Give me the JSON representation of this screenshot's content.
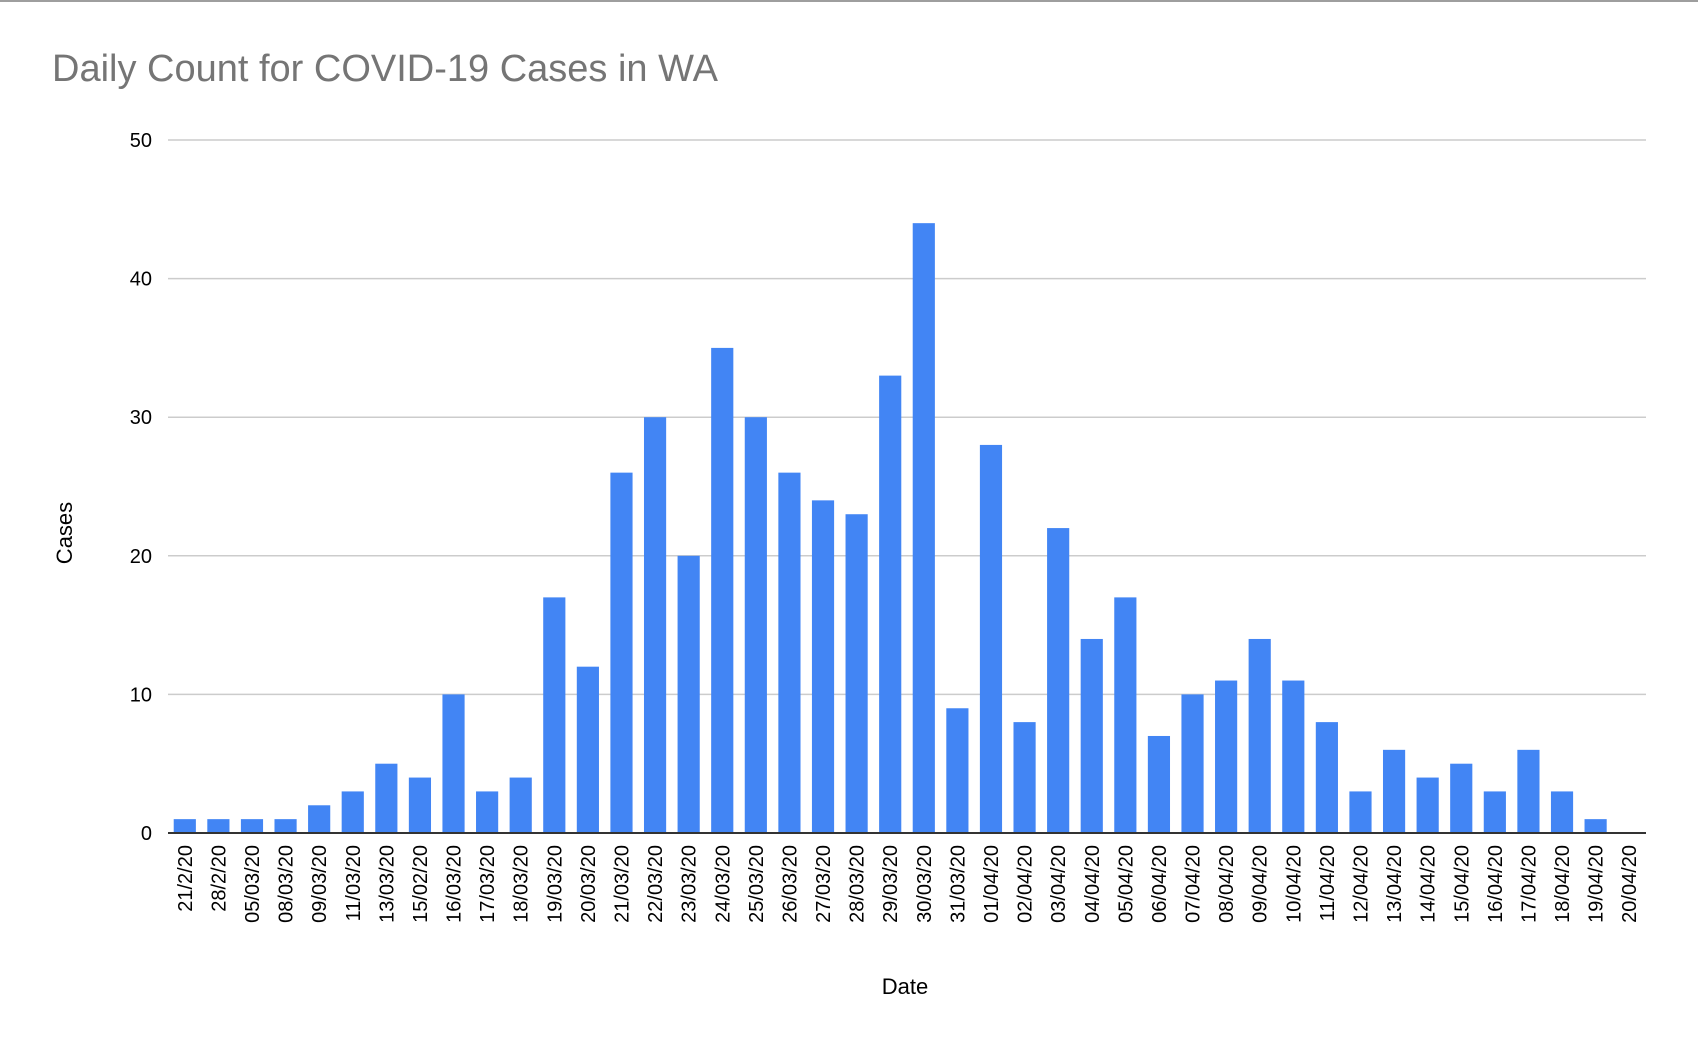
{
  "chart_data": {
    "type": "bar",
    "title": "Daily Count for COVID-19 Cases in WA",
    "xlabel": "Date",
    "ylabel": "Cases",
    "ylim": [
      0,
      50
    ],
    "yticks": [
      0,
      10,
      20,
      30,
      40,
      50
    ],
    "grid": true,
    "legend": "none",
    "bar_color": "#4285f4",
    "categories": [
      "21/2/20",
      "28/2/20",
      "05/03/20",
      "08/03/20",
      "09/03/20",
      "11/03/20",
      "13/03/20",
      "15/02/20",
      "16/03/20",
      "17/03/20",
      "18/03/20",
      "19/03/20",
      "20/03/20",
      "21/03/20",
      "22/03/20",
      "23/03/20",
      "24/03/20",
      "25/03/20",
      "26/03/20",
      "27/03/20",
      "28/03/20",
      "29/03/20",
      "30/03/20",
      "31/03/20",
      "01/04/20",
      "02/04/20",
      "03/04/20",
      "04/04/20",
      "05/04/20",
      "06/04/20",
      "07/04/20",
      "08/04/20",
      "09/04/20",
      "10/04/20",
      "11/04/20",
      "12/04/20",
      "13/04/20",
      "14/04/20",
      "15/04/20",
      "16/04/20",
      "17/04/20",
      "18/04/20",
      "19/04/20",
      "20/04/20"
    ],
    "values": [
      1,
      1,
      1,
      1,
      2,
      3,
      5,
      4,
      10,
      3,
      4,
      17,
      12,
      26,
      30,
      20,
      35,
      30,
      26,
      24,
      23,
      33,
      44,
      9,
      28,
      8,
      22,
      14,
      17,
      7,
      10,
      11,
      14,
      11,
      8,
      3,
      6,
      4,
      5,
      3,
      6,
      3,
      1,
      0
    ]
  }
}
